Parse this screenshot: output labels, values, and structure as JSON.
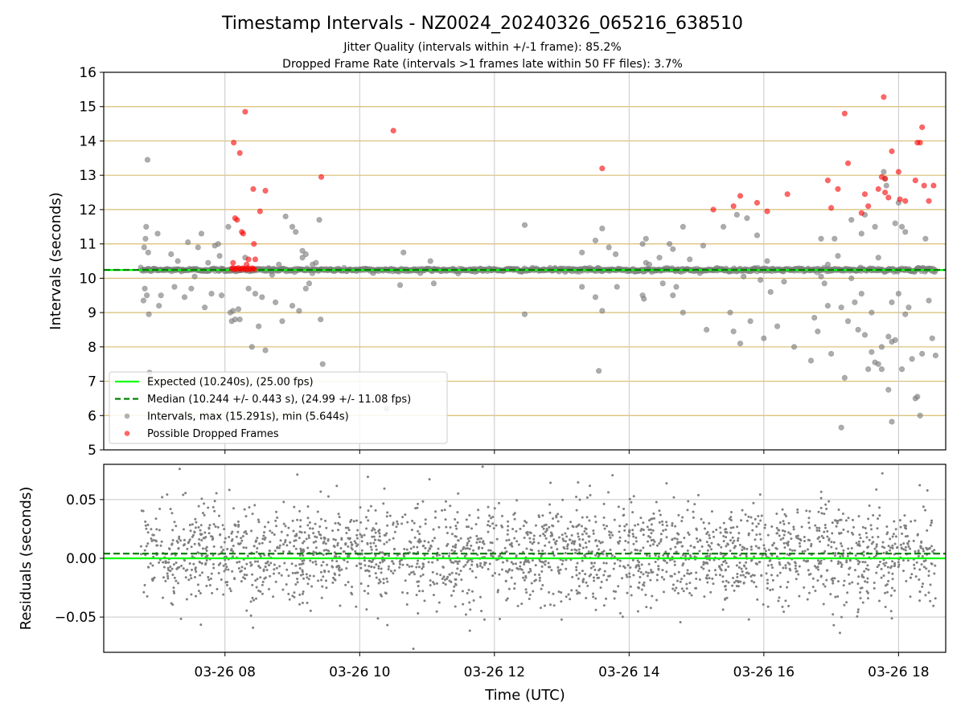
{
  "chart_data": [
    {
      "type": "scatter",
      "title": "Timestamp Intervals - NZ0024_20240326_065216_638510",
      "subtitle_lines": [
        "Jitter Quality (intervals within +/-1 frame): 85.2%",
        "Dropped Frame Rate (intervals >1 frames late within 50 FF files): 3.7%"
      ],
      "xlabel": "",
      "ylabel": "Intervals (seconds)",
      "ylim": [
        5,
        16
      ],
      "yticks": [
        5,
        6,
        7,
        8,
        9,
        10,
        11,
        12,
        13,
        14,
        15,
        16
      ],
      "xlim_hours": [
        6.2,
        18.7
      ],
      "xticks": [
        {
          "hour": 8,
          "label": "03-26 08"
        },
        {
          "hour": 10,
          "label": "03-26 10"
        },
        {
          "hour": 12,
          "label": "03-26 12"
        },
        {
          "hour": 14,
          "label": "03-26 14"
        },
        {
          "hour": 16,
          "label": "03-26 16"
        },
        {
          "hour": 18,
          "label": "03-26 18"
        }
      ],
      "grid": true,
      "legend_position": "lower-left",
      "expected_line": {
        "value": 10.24,
        "color": "#00ff00",
        "label": "Expected (10.240s), (25.00 fps)"
      },
      "median_line": {
        "value": 10.244,
        "color": "#008000",
        "label": "Median (10.244 +/- 0.443 s), (24.99 +/- 11.08 fps)"
      },
      "series": [
        {
          "name": "Intervals, max (15.291s), min (5.644s)",
          "color": "#808080",
          "points": [
            [
              6.85,
              13.45
            ],
            [
              6.83,
              11.5
            ],
            [
              6.82,
              11.15
            ],
            [
              6.8,
              10.9
            ],
            [
              6.86,
              10.75
            ],
            [
              6.81,
              9.7
            ],
            [
              6.84,
              9.5
            ],
            [
              6.79,
              9.35
            ],
            [
              6.87,
              8.95
            ],
            [
              6.88,
              7.25
            ],
            [
              7.0,
              11.3
            ],
            [
              7.02,
              9.2
            ],
            [
              7.05,
              9.5
            ],
            [
              7.2,
              10.7
            ],
            [
              7.25,
              9.75
            ],
            [
              7.3,
              10.5
            ],
            [
              7.4,
              9.45
            ],
            [
              7.45,
              11.05
            ],
            [
              7.5,
              9.7
            ],
            [
              7.55,
              10.05
            ],
            [
              7.6,
              10.9
            ],
            [
              7.65,
              11.3
            ],
            [
              7.7,
              9.15
            ],
            [
              7.75,
              10.45
            ],
            [
              7.8,
              9.55
            ],
            [
              7.85,
              10.95
            ],
            [
              7.9,
              11.0
            ],
            [
              7.95,
              9.5
            ],
            [
              7.92,
              10.65
            ],
            [
              8.05,
              11.5
            ],
            [
              8.08,
              9.0
            ],
            [
              8.1,
              8.75
            ],
            [
              8.12,
              9.05
            ],
            [
              8.15,
              8.8
            ],
            [
              8.2,
              9.1
            ],
            [
              8.22,
              8.8
            ],
            [
              8.3,
              10.6
            ],
            [
              8.35,
              9.7
            ],
            [
              8.4,
              8.0
            ],
            [
              8.45,
              9.55
            ],
            [
              8.5,
              8.6
            ],
            [
              8.55,
              9.45
            ],
            [
              8.6,
              7.9
            ],
            [
              8.65,
              10.3
            ],
            [
              8.7,
              10.1
            ],
            [
              8.75,
              9.3
            ],
            [
              8.8,
              10.4
            ],
            [
              8.85,
              8.75
            ],
            [
              8.9,
              11.8
            ],
            [
              9.0,
              9.2
            ],
            [
              9.05,
              11.35
            ],
            [
              9.1,
              9.05
            ],
            [
              9.15,
              10.6
            ],
            [
              9.2,
              10.7
            ],
            [
              9.25,
              9.85
            ],
            [
              9.3,
              10.4
            ],
            [
              9.35,
              10.45
            ],
            [
              9.4,
              11.7
            ],
            [
              9.42,
              8.8
            ],
            [
              9.45,
              7.5
            ],
            [
              9.0,
              11.5
            ],
            [
              9.15,
              10.8
            ],
            [
              9.2,
              9.7
            ],
            [
              10.2,
              10.15
            ],
            [
              10.4,
              6.2
            ],
            [
              10.6,
              9.8
            ],
            [
              10.65,
              10.75
            ],
            [
              10.9,
              10.15
            ],
            [
              11.05,
              10.5
            ],
            [
              11.1,
              9.85
            ],
            [
              12.45,
              11.55
            ],
            [
              12.45,
              8.95
            ],
            [
              12.9,
              10.3
            ],
            [
              13.3,
              10.75
            ],
            [
              13.3,
              9.75
            ],
            [
              13.5,
              9.45
            ],
            [
              13.5,
              11.1
            ],
            [
              13.6,
              11.45
            ],
            [
              13.6,
              9.05
            ],
            [
              13.7,
              10.9
            ],
            [
              13.8,
              10.7
            ],
            [
              13.82,
              9.75
            ],
            [
              13.55,
              7.3
            ],
            [
              14.1,
              10.2
            ],
            [
              14.2,
              11.0
            ],
            [
              14.2,
              9.5
            ],
            [
              14.22,
              9.4
            ],
            [
              14.25,
              11.15
            ],
            [
              14.25,
              10.45
            ],
            [
              14.3,
              10.4
            ],
            [
              14.45,
              10.6
            ],
            [
              14.5,
              9.85
            ],
            [
              14.6,
              11.0
            ],
            [
              14.65,
              10.85
            ],
            [
              14.65,
              9.5
            ],
            [
              14.7,
              9.75
            ],
            [
              14.8,
              9.0
            ],
            [
              14.8,
              11.5
            ],
            [
              14.9,
              10.55
            ],
            [
              15.1,
              10.95
            ],
            [
              15.15,
              8.5
            ],
            [
              15.3,
              10.3
            ],
            [
              15.4,
              11.5
            ],
            [
              15.5,
              9.0
            ],
            [
              15.55,
              8.45
            ],
            [
              15.6,
              11.85
            ],
            [
              15.65,
              8.1
            ],
            [
              15.7,
              10.05
            ],
            [
              15.75,
              11.75
            ],
            [
              15.8,
              8.75
            ],
            [
              15.85,
              10.25
            ],
            [
              15.9,
              11.25
            ],
            [
              15.95,
              9.95
            ],
            [
              16.0,
              8.25
            ],
            [
              16.05,
              10.5
            ],
            [
              16.1,
              9.6
            ],
            [
              16.2,
              8.6
            ],
            [
              16.3,
              10.25
            ],
            [
              16.45,
              8.0
            ],
            [
              16.7,
              7.6
            ],
            [
              16.75,
              8.85
            ],
            [
              16.8,
              8.45
            ],
            [
              16.85,
              11.15
            ],
            [
              16.9,
              9.85
            ],
            [
              16.95,
              9.2
            ],
            [
              17.0,
              7.8
            ],
            [
              17.05,
              11.15
            ],
            [
              17.1,
              10.65
            ],
            [
              17.15,
              9.15
            ],
            [
              17.2,
              7.1
            ],
            [
              17.25,
              8.75
            ],
            [
              17.3,
              11.7
            ],
            [
              17.35,
              9.3
            ],
            [
              17.4,
              8.5
            ],
            [
              17.45,
              11.3
            ],
            [
              17.5,
              8.35
            ],
            [
              17.6,
              7.85
            ],
            [
              17.65,
              7.55
            ],
            [
              17.7,
              7.5
            ],
            [
              17.75,
              8.0
            ],
            [
              17.8,
              12.9
            ],
            [
              17.85,
              6.75
            ],
            [
              17.9,
              9.3
            ],
            [
              17.95,
              11.6
            ],
            [
              18.0,
              12.2
            ],
            [
              18.05,
              7.35
            ],
            [
              17.55,
              7.35
            ],
            [
              17.6,
              9.0
            ],
            [
              17.65,
              11.5
            ],
            [
              17.7,
              10.6
            ],
            [
              17.75,
              7.35
            ],
            [
              17.78,
              13.1
            ],
            [
              17.82,
              12.7
            ],
            [
              17.9,
              5.82
            ],
            [
              17.95,
              8.2
            ],
            [
              18.0,
              9.55
            ],
            [
              17.85,
              8.3
            ],
            [
              17.9,
              8.15
            ],
            [
              17.45,
              9.55
            ],
            [
              17.5,
              11.85
            ],
            [
              18.05,
              11.5
            ],
            [
              18.1,
              11.35
            ],
            [
              18.15,
              9.15
            ],
            [
              18.1,
              8.95
            ],
            [
              18.2,
              7.65
            ],
            [
              18.25,
              6.5
            ],
            [
              18.28,
              6.55
            ],
            [
              18.32,
              6.0
            ],
            [
              18.35,
              7.8
            ],
            [
              18.4,
              11.15
            ],
            [
              18.45,
              9.35
            ],
            [
              18.5,
              8.25
            ],
            [
              18.55,
              7.75
            ],
            [
              17.15,
              5.65
            ],
            [
              18.3,
              10.3
            ],
            [
              17.3,
              10.0
            ],
            [
              16.95,
              10.4
            ],
            [
              16.85,
              10.05
            ],
            [
              16.3,
              9.9
            ],
            [
              15.05,
              10.15
            ]
          ]
        },
        {
          "name": "Possible Dropped Frames",
          "color": "#ff0000",
          "points": [
            [
              8.13,
              13.95
            ],
            [
              8.22,
              13.65
            ],
            [
              8.3,
              14.85
            ],
            [
              8.15,
              11.75
            ],
            [
              8.18,
              11.7
            ],
            [
              8.25,
              11.35
            ],
            [
              8.27,
              11.3
            ],
            [
              8.42,
              12.6
            ],
            [
              8.52,
              11.95
            ],
            [
              8.6,
              12.55
            ],
            [
              8.43,
              11.0
            ],
            [
              8.35,
              10.55
            ],
            [
              8.45,
              10.55
            ],
            [
              8.12,
              10.45
            ],
            [
              8.32,
              10.4
            ],
            [
              8.1,
              10.28
            ],
            [
              8.14,
              10.25
            ],
            [
              8.18,
              10.27
            ],
            [
              8.2,
              10.3
            ],
            [
              8.24,
              10.26
            ],
            [
              8.28,
              10.28
            ],
            [
              8.32,
              10.25
            ],
            [
              8.36,
              10.27
            ],
            [
              8.4,
              10.29
            ],
            [
              8.44,
              10.26
            ],
            [
              8.12,
              10.3
            ],
            [
              8.16,
              10.28
            ],
            [
              8.22,
              10.27
            ],
            [
              8.26,
              10.29
            ],
            [
              8.3,
              10.27
            ],
            [
              8.34,
              10.3
            ],
            [
              8.38,
              10.26
            ],
            [
              8.42,
              10.28
            ],
            [
              9.43,
              12.95
            ],
            [
              10.5,
              14.3
            ],
            [
              13.6,
              13.2
            ],
            [
              15.25,
              12.0
            ],
            [
              15.55,
              12.1
            ],
            [
              15.65,
              12.4
            ],
            [
              15.9,
              12.2
            ],
            [
              16.05,
              11.95
            ],
            [
              16.35,
              12.45
            ],
            [
              16.95,
              12.85
            ],
            [
              17.0,
              12.05
            ],
            [
              17.1,
              12.6
            ],
            [
              17.2,
              14.8
            ],
            [
              17.25,
              13.35
            ],
            [
              17.45,
              11.9
            ],
            [
              17.5,
              12.45
            ],
            [
              17.55,
              12.1
            ],
            [
              17.7,
              12.6
            ],
            [
              17.75,
              12.95
            ],
            [
              17.8,
              12.9
            ],
            [
              17.8,
              12.5
            ],
            [
              17.85,
              12.35
            ],
            [
              17.9,
              13.7
            ],
            [
              18.0,
              13.1
            ],
            [
              18.02,
              12.3
            ],
            [
              18.1,
              12.25
            ],
            [
              17.78,
              15.28
            ],
            [
              18.25,
              12.85
            ],
            [
              18.28,
              13.95
            ],
            [
              18.32,
              13.95
            ],
            [
              18.35,
              14.4
            ],
            [
              18.38,
              12.7
            ],
            [
              18.45,
              12.25
            ],
            [
              18.52,
              12.7
            ]
          ]
        }
      ],
      "dense_band": {
        "center": 10.244,
        "spread": 0.025,
        "from_hour": 6.75,
        "to_hour": 18.55
      }
    },
    {
      "type": "scatter",
      "title": "",
      "xlabel": "Time (UTC)",
      "ylabel": "Residuals (seconds)",
      "ylim": [
        -0.08,
        0.08
      ],
      "yticks": [
        {
          "value": 0.05,
          "label": "0.05"
        },
        {
          "value": 0.0,
          "label": "0.00"
        },
        {
          "value": -0.05,
          "label": "−0.05"
        }
      ],
      "xlim_hours": [
        6.2,
        18.7
      ],
      "x_range_hours": [
        6.75,
        18.55
      ],
      "grid": true,
      "zero_line": {
        "value": 0.0,
        "color": "#00ff00"
      },
      "median_line": {
        "value": 0.004,
        "color": "#008000"
      },
      "point_color": "#808080",
      "point_count": 2400,
      "y_spread": 0.06,
      "y_center": 0.004
    }
  ]
}
